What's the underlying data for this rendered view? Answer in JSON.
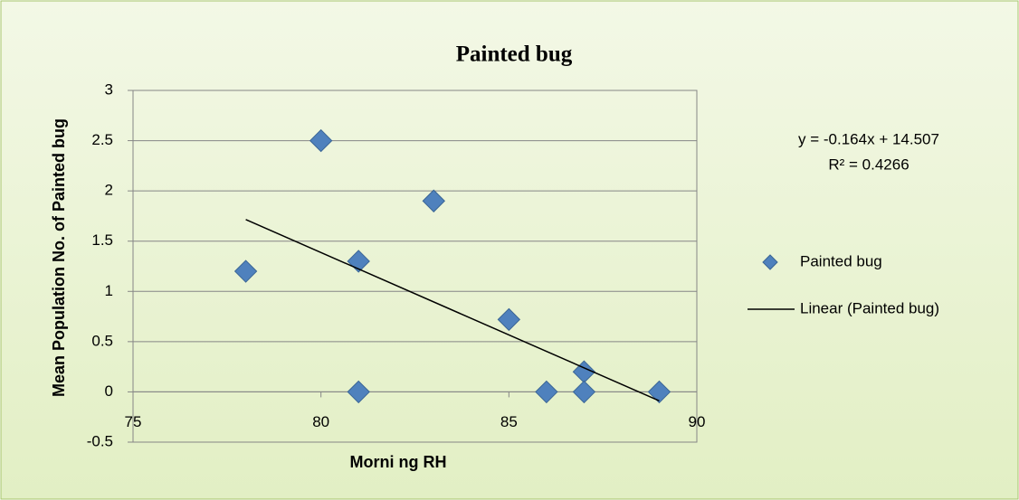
{
  "chart_data": {
    "type": "scatter",
    "title": "Painted bug",
    "x_label": "Morni ng RH",
    "y_label": "Mean Population No. of Painted bug",
    "series": [
      {
        "name": "Painted bug",
        "color": "#4f81bd",
        "x": [
          78,
          80,
          81,
          81,
          83,
          85,
          86,
          87,
          87,
          89
        ],
        "values": [
          1.2,
          2.5,
          1.3,
          0,
          1.9,
          0.72,
          0,
          0.2,
          0,
          0
        ]
      }
    ],
    "trendline": {
      "name": "Linear (Painted bug)",
      "color": "#000000",
      "slope": -0.164,
      "intercept": 14.507,
      "x": [
        78,
        89
      ]
    },
    "annotations": [
      "y = -0.164x + 14.507",
      "R² = 0.4266"
    ],
    "xlim": [
      75,
      90
    ],
    "xticks": [
      75,
      80,
      85,
      90
    ],
    "ylim": [
      -0.5,
      3
    ],
    "yticks": [
      -0.5,
      0,
      0.5,
      1,
      1.5,
      2,
      2.5,
      3
    ],
    "grid": true,
    "legend": "right"
  }
}
